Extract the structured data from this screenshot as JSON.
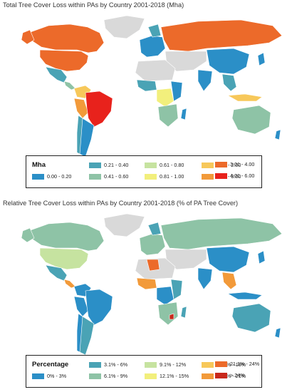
{
  "map1": {
    "title": "Total Tree Cover Loss within PAs by Country 2001-2018 (Mha)",
    "legend_title": "Mha",
    "legend": [
      {
        "label": "0.00 - 0.20",
        "color": "#2b8fc7"
      },
      {
        "label": "0.21 - 0.40",
        "color": "#4aa3b5"
      },
      {
        "label": "0.41 - 0.60",
        "color": "#8ec3a6"
      },
      {
        "label": "0.61 - 0.80",
        "color": "#c6e3a0"
      },
      {
        "label": "0.81 - 1.00",
        "color": "#f2ef7c"
      },
      {
        "label": "1.01 - 2.00",
        "color": "#f7c85a"
      },
      {
        "label": "2.01 - 3.00",
        "color": "#f29a3a"
      },
      {
        "label": "3.01 - 4.00",
        "color": "#ec6a2a"
      },
      {
        "label": "4.01 - 6.00",
        "color": "#e8221c"
      }
    ]
  },
  "map2": {
    "title": "Relative Tree Cover Loss within PAs by Country 2001-2018 (% of PA Tree Cover)",
    "legend_title": "Percentage",
    "legend": [
      {
        "label": "0% - 3%",
        "color": "#2b8fc7"
      },
      {
        "label": "3.1% - 6%",
        "color": "#4aa3b5"
      },
      {
        "label": "6.1% - 9%",
        "color": "#8ec3a6"
      },
      {
        "label": "9.1% - 12%",
        "color": "#c6e3a0"
      },
      {
        "label": "12.1% - 15%",
        "color": "#f2ef7c"
      },
      {
        "label": "15.1% - 18%",
        "color": "#f7c85a"
      },
      {
        "label": "18.1% - 21%",
        "color": "#f29a3a"
      },
      {
        "label": "21.1% - 24%",
        "color": "#ec6a2a"
      },
      {
        "label": "> 24%",
        "color": "#c8281c"
      }
    ]
  },
  "colors": {
    "no_data": "#d9d9d9",
    "border": "#ffffff"
  }
}
